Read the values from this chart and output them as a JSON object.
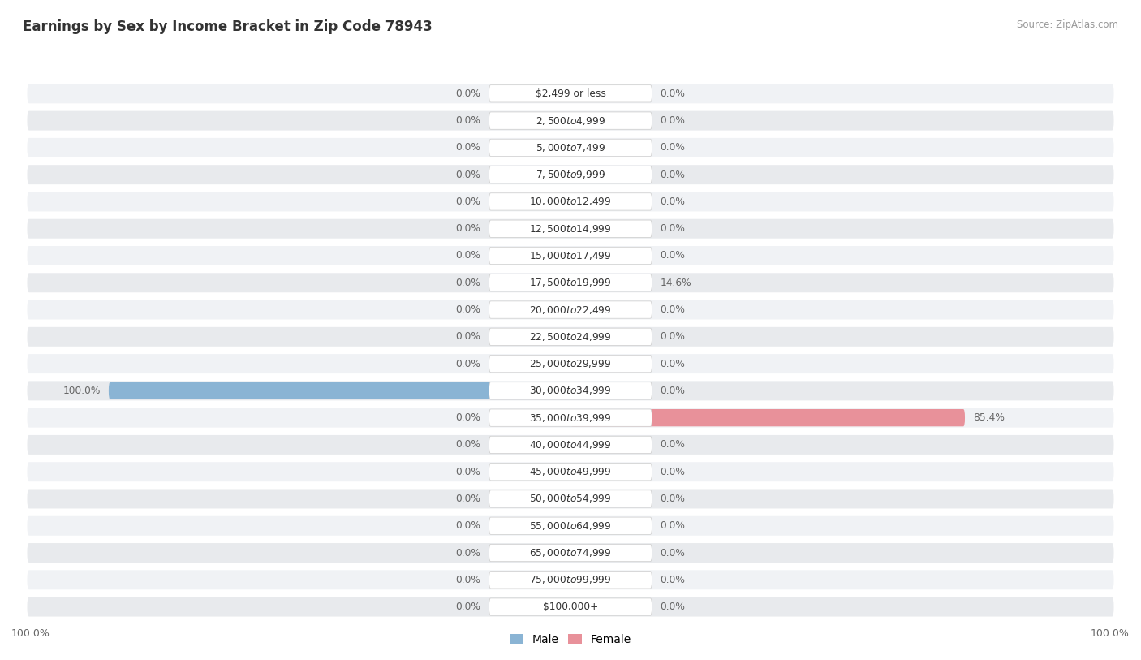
{
  "title": "Earnings by Sex by Income Bracket in Zip Code 78943",
  "source": "Source: ZipAtlas.com",
  "categories": [
    "$2,499 or less",
    "$2,500 to $4,999",
    "$5,000 to $7,499",
    "$7,500 to $9,999",
    "$10,000 to $12,499",
    "$12,500 to $14,999",
    "$15,000 to $17,499",
    "$17,500 to $19,999",
    "$20,000 to $22,499",
    "$22,500 to $24,999",
    "$25,000 to $29,999",
    "$30,000 to $34,999",
    "$35,000 to $39,999",
    "$40,000 to $44,999",
    "$45,000 to $49,999",
    "$50,000 to $54,999",
    "$55,000 to $64,999",
    "$65,000 to $74,999",
    "$75,000 to $99,999",
    "$100,000+"
  ],
  "male_values": [
    0.0,
    0.0,
    0.0,
    0.0,
    0.0,
    0.0,
    0.0,
    0.0,
    0.0,
    0.0,
    0.0,
    100.0,
    0.0,
    0.0,
    0.0,
    0.0,
    0.0,
    0.0,
    0.0,
    0.0
  ],
  "female_values": [
    0.0,
    0.0,
    0.0,
    0.0,
    0.0,
    0.0,
    0.0,
    14.6,
    0.0,
    0.0,
    0.0,
    0.0,
    85.4,
    0.0,
    0.0,
    0.0,
    0.0,
    0.0,
    0.0,
    0.0
  ],
  "male_color": "#8ab4d4",
  "female_color": "#e8919a",
  "male_label": "Male",
  "female_label": "Female",
  "label_color": "#666666",
  "title_color": "#333333",
  "source_color": "#999999",
  "max_value": 100.0,
  "row_colors": [
    "#f0f2f5",
    "#e8eaed"
  ]
}
